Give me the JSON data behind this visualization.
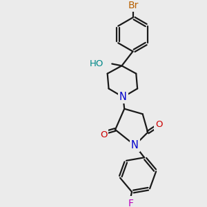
{
  "bg_color": "#ebebeb",
  "bond_color": "#1a1a1a",
  "bond_width": 1.6,
  "atom_colors": {
    "Br": "#b86000",
    "F": "#bb00bb",
    "N": "#0000cc",
    "O": "#cc0000",
    "H": "#008888"
  },
  "font_size": 9.5,
  "fig_size": [
    3.0,
    3.0
  ],
  "dpi": 100
}
